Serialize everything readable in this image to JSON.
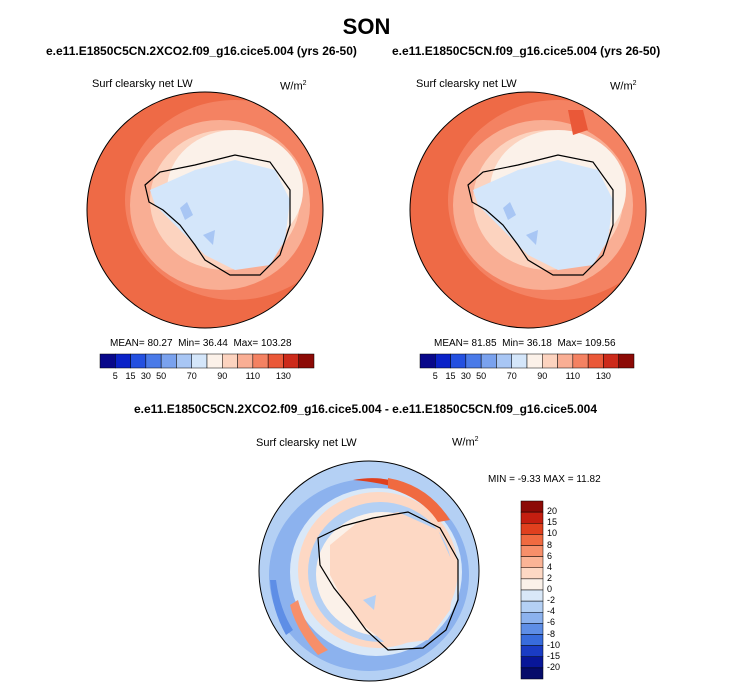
{
  "season_title": "SON",
  "panels": [
    {
      "case_title": "e.e11.E1850C5CN.2XCO2.f09_g16.cice5.004 (yrs 26-50)",
      "variable": "Surf clearsky net LW",
      "units": "W/m",
      "units_exp": "2",
      "stats": {
        "mean": "80.27",
        "min": "36.44",
        "max": "103.28"
      },
      "mean_label": "MEAN=",
      "min_label": "Min=",
      "max_label": "Max="
    },
    {
      "case_title": "e.e11.E1850C5CN.f09_g16.cice5.004 (yrs 26-50)",
      "variable": "Surf clearsky net LW",
      "units": "W/m",
      "units_exp": "2",
      "stats": {
        "mean": "81.85",
        "min": "36.18",
        "max": "109.56"
      },
      "mean_label": "MEAN=",
      "min_label": "Min=",
      "max_label": "Max="
    }
  ],
  "abs_colorbar": {
    "tick_labels": [
      "5",
      "15",
      "30",
      "50",
      "70",
      "90",
      "110",
      "130"
    ],
    "colors": [
      "#08088a",
      "#0a22c8",
      "#2450e0",
      "#4a7ae8",
      "#7aa2ee",
      "#a8c6f4",
      "#d4e6fa",
      "#fbf1e9",
      "#fcd3bf",
      "#f9ae94",
      "#f48262",
      "#ea5838",
      "#cc2a1a",
      "#8c0a06"
    ]
  },
  "diff_panel": {
    "case_title": "e.e11.E1850C5CN.2XCO2.f09_g16.cice5.004 - e.e11.E1850C5CN.f09_g16.cice5.004",
    "variable": "Surf clearsky net LW",
    "units": "W/m",
    "units_exp": "2",
    "minmax_text": "MIN = -9.33 MAX = 11.82",
    "colorbar_labels": [
      "20",
      "15",
      "10",
      "8",
      "6",
      "4",
      "2",
      "0",
      "-2",
      "-4",
      "-6",
      "-8",
      "-10",
      "-15",
      "-20"
    ],
    "colorbar_colors": [
      "#8c0a06",
      "#c41e10",
      "#e0401e",
      "#f06a40",
      "#f78f6a",
      "#fbb496",
      "#fdd8c4",
      "#fbf1e9",
      "#d9e8f8",
      "#b4d0f4",
      "#8cb2ee",
      "#5e8ee6",
      "#386cdc",
      "#1a3cc4",
      "#081698",
      "#060c6a"
    ]
  }
}
